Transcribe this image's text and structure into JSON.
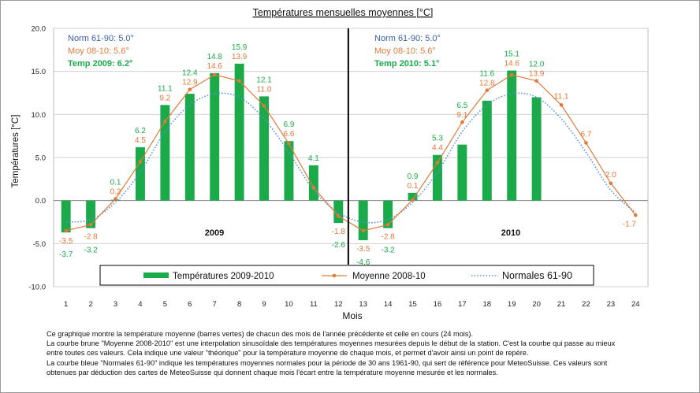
{
  "chart_data": {
    "type": "bar",
    "title": "Températures mensuelles moyennes  [°C]",
    "xlabel": "Mois",
    "ylabel": "Températures [°C]",
    "ylim": [
      -10,
      20
    ],
    "yticks": [
      "20.0",
      "15.0",
      "10.0",
      "5.0",
      "0.0",
      "-5.0",
      "-10.0"
    ],
    "ytick_values": [
      20,
      15,
      10,
      5,
      0,
      -5,
      -10
    ],
    "categories": [
      "1",
      "2",
      "3",
      "4",
      "5",
      "6",
      "7",
      "8",
      "9",
      "10",
      "11",
      "12",
      "13",
      "14",
      "15",
      "16",
      "17",
      "18",
      "19",
      "20",
      "21",
      "22",
      "23",
      "24"
    ],
    "grid": true,
    "legend_position": "bottom",
    "series": [
      {
        "name": "Températures 2009-2010",
        "kind": "bar",
        "color": "#1aaa4a",
        "values": [
          -3.7,
          -3.2,
          0.1,
          6.2,
          11.1,
          12.4,
          14.8,
          15.9,
          12.1,
          6.9,
          4.1,
          -2.6,
          -4.6,
          -3.2,
          0.9,
          5.3,
          6.5,
          11.6,
          15.1,
          12.0,
          null,
          null,
          null,
          null
        ],
        "labels": [
          "-3.7",
          "-3.2",
          "0.1",
          "6.2",
          "11.1",
          "12.4",
          "14.8",
          "15.9",
          "12.1",
          "6.9",
          "4.1",
          "-2.6",
          "-4.6",
          "-3.2",
          "0.9",
          "5.3",
          "6.5",
          "11.6",
          "15.1",
          "12.0",
          null,
          null,
          null,
          null
        ]
      },
      {
        "name": "Moyenne 2008-10",
        "kind": "line",
        "color": "#e07a3a",
        "values": [
          -3.5,
          -2.8,
          0.2,
          4.5,
          9.2,
          12.9,
          14.6,
          13.9,
          11.0,
          6.6,
          1.5,
          -1.8,
          -3.5,
          -2.8,
          0.1,
          4.4,
          9.1,
          12.8,
          14.6,
          13.9,
          11.1,
          6.7,
          2.0,
          -1.7
        ],
        "labels": [
          "-3.5",
          "-2.8",
          "0.2",
          "4.5",
          "9.2",
          "12.9",
          "14.6",
          "13.9",
          "11.0",
          "6.6",
          null,
          "-1.8",
          "-3.5",
          "-2.8",
          "0.1",
          "4.4",
          "9.1",
          "12.8",
          "14.6",
          "13.9",
          "11.1",
          "6.7",
          "2.0",
          "-1.7"
        ]
      },
      {
        "name": "Normales 61-90",
        "kind": "dotted-line",
        "color": "#5b8fd6",
        "values": [
          -2.5,
          -2.2,
          -0.2,
          3.3,
          8.0,
          11.1,
          12.4,
          12.0,
          9.5,
          5.6,
          1.2,
          -1.4,
          -2.5,
          -2.2,
          -0.2,
          3.3,
          8.0,
          11.1,
          12.4,
          12.0,
          9.5,
          5.6,
          1.2,
          -1.4
        ]
      }
    ],
    "panels": [
      {
        "year_label": "2009",
        "norm_text": "Norm 61-90: 5.0°",
        "moy_text": "Moy 08-10:   5.6°",
        "temp_text": "Temp 2009:  6.2°"
      },
      {
        "year_label": "2010",
        "norm_text": "Norm 61-90: 5.0°",
        "moy_text": "Moy 08-10:   5.6°",
        "temp_text": "Temp 2010:  5.1°"
      }
    ],
    "colors": {
      "bar": "#1aaa4a",
      "moyenne": "#e07a3a",
      "normales": "#5b8fd6",
      "norm_text": "#3b5ea8",
      "moy_text": "#e07a3a",
      "temp_text": "#1aaa4a"
    }
  },
  "caption_lines": [
    "Ce graphique montre la température moyenne (barres vertes) de chacun des mois de l'année précédente et celle en cours (24 mois).",
    "La courbe brune \"Moyenne 2008-2010\" est une interpolation sinusoïdale des  températures moyennes mesurées depuis le début de la station. C'est la courbe qui passe au mieux",
    "entre toutes ces valeurs. Cela indique une valeur \"théorique\" pour la température moyenne de chaque mois, et permet d'avoir ainsi un point de repère.",
    "La courbe bleue \"Normales 61-90\" indique les  températures moyennes normales pour la période de 30 ans 1961-90, qui sert de référence pour MeteoSuisse. Ces valeurs sont",
    "obtenues par déduction des cartes de MeteoSuisse qui donnent chaque mois l'écart entre la température moyenne mesurée et les normales."
  ]
}
